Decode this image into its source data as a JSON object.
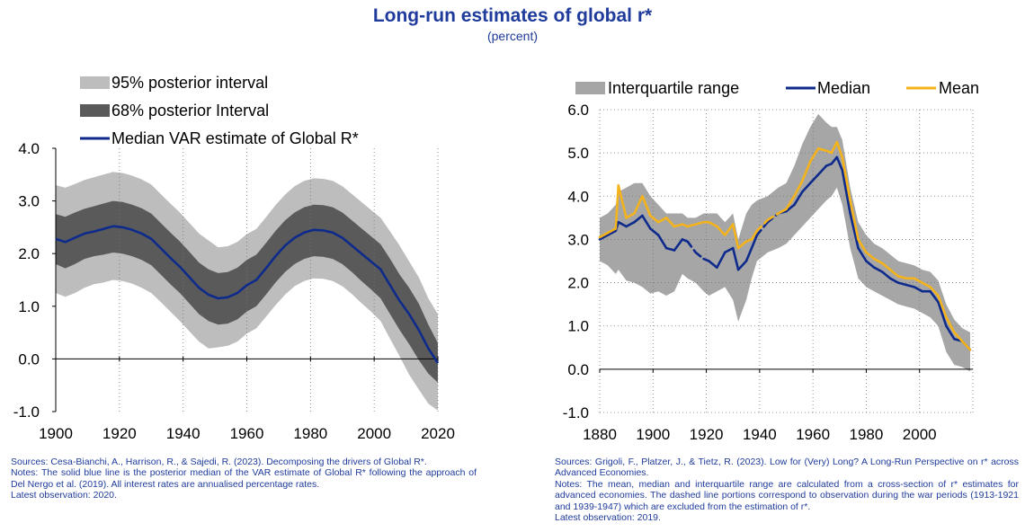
{
  "header": {
    "title": "Long-run estimates of global r*",
    "subtitle": "(percent)"
  },
  "colors": {
    "title": "#1f3b9b",
    "median_blue": "#0e2b8c",
    "band_95": "#bdbdbd",
    "band_68": "#5a5a5a",
    "iqr_gray": "#a6a6a6",
    "mean_yellow": "#f5b31b"
  },
  "chart_data": [
    {
      "type": "area",
      "title": "",
      "xlabel": "",
      "ylabel": "",
      "xlim": [
        1900,
        2020
      ],
      "ylim": [
        -1.0,
        4.0
      ],
      "x_ticks": [
        "1900",
        "1920",
        "1940",
        "1960",
        "1980",
        "2000",
        "2020"
      ],
      "y_ticks": [
        "4.0",
        "3.0",
        "2.0",
        "1.0",
        "0.0",
        "-1.0"
      ],
      "grid": "vertical dotted",
      "legend_position": "top-left",
      "legend": [
        "95% posterior interval",
        "68% posterior Interval",
        "Median VAR estimate of Global R*"
      ],
      "x": [
        1900,
        1903,
        1906,
        1909,
        1912,
        1915,
        1918,
        1921,
        1924,
        1927,
        1930,
        1933,
        1936,
        1939,
        1942,
        1945,
        1948,
        1951,
        1954,
        1957,
        1960,
        1963,
        1966,
        1969,
        1972,
        1975,
        1978,
        1981,
        1984,
        1987,
        1990,
        1993,
        1996,
        1999,
        2002,
        2005,
        2008,
        2011,
        2014,
        2017,
        2020
      ],
      "series": [
        {
          "name": "Median VAR estimate of Global R*",
          "values": [
            2.28,
            2.22,
            2.3,
            2.38,
            2.42,
            2.47,
            2.52,
            2.5,
            2.45,
            2.38,
            2.28,
            2.1,
            1.92,
            1.75,
            1.55,
            1.35,
            1.22,
            1.15,
            1.17,
            1.25,
            1.4,
            1.5,
            1.72,
            1.95,
            2.15,
            2.3,
            2.4,
            2.45,
            2.44,
            2.4,
            2.3,
            2.15,
            2.0,
            1.85,
            1.7,
            1.4,
            1.1,
            0.85,
            0.55,
            0.2,
            -0.08
          ]
        },
        {
          "name": "68% posterior Interval",
          "lower": [
            1.8,
            1.72,
            1.8,
            1.9,
            1.95,
            1.98,
            2.02,
            2.0,
            1.95,
            1.88,
            1.78,
            1.6,
            1.42,
            1.25,
            1.05,
            0.85,
            0.72,
            0.65,
            0.67,
            0.75,
            0.9,
            1.0,
            1.22,
            1.45,
            1.65,
            1.8,
            1.9,
            1.95,
            1.94,
            1.9,
            1.8,
            1.65,
            1.48,
            1.32,
            1.15,
            0.85,
            0.55,
            0.28,
            -0.02,
            -0.28,
            -0.45
          ],
          "upper": [
            2.75,
            2.7,
            2.78,
            2.85,
            2.9,
            2.95,
            3.0,
            2.98,
            2.93,
            2.86,
            2.76,
            2.58,
            2.4,
            2.23,
            2.03,
            1.83,
            1.7,
            1.63,
            1.65,
            1.73,
            1.88,
            1.98,
            2.2,
            2.43,
            2.63,
            2.78,
            2.88,
            2.93,
            2.92,
            2.88,
            2.78,
            2.63,
            2.48,
            2.33,
            2.18,
            1.9,
            1.6,
            1.35,
            1.05,
            0.65,
            0.3
          ]
        },
        {
          "name": "95% posterior interval",
          "lower": [
            1.25,
            1.18,
            1.25,
            1.35,
            1.42,
            1.45,
            1.5,
            1.48,
            1.43,
            1.35,
            1.25,
            1.08,
            0.9,
            0.72,
            0.52,
            0.33,
            0.2,
            0.22,
            0.25,
            0.33,
            0.48,
            0.58,
            0.8,
            1.02,
            1.22,
            1.38,
            1.48,
            1.53,
            1.52,
            1.48,
            1.38,
            1.23,
            1.06,
            0.9,
            0.72,
            0.38,
            0.05,
            -0.3,
            -0.58,
            -0.85,
            -0.98
          ],
          "upper": [
            3.3,
            3.25,
            3.32,
            3.4,
            3.45,
            3.5,
            3.55,
            3.53,
            3.48,
            3.41,
            3.31,
            3.13,
            2.95,
            2.78,
            2.58,
            2.38,
            2.25,
            2.12,
            2.14,
            2.22,
            2.37,
            2.47,
            2.69,
            2.92,
            3.12,
            3.28,
            3.38,
            3.43,
            3.42,
            3.38,
            3.28,
            3.13,
            2.98,
            2.83,
            2.68,
            2.42,
            2.15,
            1.85,
            1.55,
            1.15,
            0.85
          ]
        }
      ]
    },
    {
      "type": "line",
      "title": "",
      "xlabel": "",
      "ylabel": "",
      "xlim": [
        1880,
        2020
      ],
      "ylim": [
        -1.0,
        6.0
      ],
      "x_ticks": [
        "1880",
        "1900",
        "1920",
        "1940",
        "1960",
        "1980",
        "2000"
      ],
      "y_ticks": [
        "6.0",
        "5.0",
        "4.0",
        "3.0",
        "2.0",
        "1.0",
        "0.0",
        "-1.0"
      ],
      "grid": "dotted",
      "legend_position": "top",
      "legend": [
        "Interquartile range",
        "Median",
        "Mean"
      ],
      "x": [
        1880,
        1883,
        1886,
        1887,
        1890,
        1893,
        1896,
        1899,
        1902,
        1905,
        1908,
        1911,
        1913,
        1916,
        1919,
        1921,
        1924,
        1927,
        1930,
        1932,
        1935,
        1937,
        1939,
        1943,
        1947,
        1950,
        1953,
        1956,
        1959,
        1962,
        1965,
        1967,
        1969,
        1971,
        1974,
        1977,
        1980,
        1983,
        1986,
        1989,
        1992,
        1995,
        1998,
        2001,
        2004,
        2007,
        2010,
        2013,
        2016,
        2019
      ],
      "series": [
        {
          "name": "Median",
          "values": [
            3.0,
            3.1,
            3.2,
            3.4,
            3.3,
            3.4,
            3.55,
            3.25,
            3.1,
            2.8,
            2.75,
            3.0,
            2.95,
            2.7,
            2.55,
            2.5,
            2.35,
            2.7,
            2.8,
            2.3,
            2.5,
            2.8,
            3.1,
            3.4,
            3.6,
            3.65,
            3.8,
            4.1,
            4.3,
            4.5,
            4.7,
            4.75,
            4.9,
            4.6,
            3.6,
            2.8,
            2.5,
            2.35,
            2.25,
            2.1,
            2.0,
            1.95,
            1.9,
            1.8,
            1.8,
            1.55,
            1.0,
            0.7,
            0.65,
            0.45
          ]
        },
        {
          "name": "Mean",
          "values": [
            3.05,
            3.15,
            3.25,
            4.25,
            3.5,
            3.6,
            4.0,
            3.55,
            3.4,
            3.5,
            3.3,
            3.35,
            3.3,
            3.35,
            3.4,
            3.4,
            3.3,
            3.1,
            3.35,
            2.8,
            2.95,
            3.0,
            3.2,
            3.45,
            3.6,
            3.7,
            4.0,
            4.35,
            4.8,
            5.1,
            5.05,
            5.0,
            5.25,
            4.9,
            3.9,
            3.0,
            2.7,
            2.55,
            2.45,
            2.3,
            2.15,
            2.1,
            2.1,
            2.0,
            1.9,
            1.7,
            1.2,
            0.85,
            0.65,
            0.45
          ]
        },
        {
          "name": "Interquartile range",
          "lower": [
            2.5,
            2.4,
            2.2,
            2.3,
            2.05,
            2.0,
            1.9,
            1.75,
            1.8,
            1.7,
            1.8,
            2.2,
            2.1,
            2.0,
            1.8,
            1.7,
            1.8,
            1.9,
            1.6,
            1.1,
            1.6,
            2.1,
            2.5,
            2.7,
            2.8,
            2.9,
            3.1,
            3.3,
            3.5,
            3.7,
            3.9,
            4.0,
            4.2,
            3.8,
            2.8,
            2.1,
            1.9,
            1.8,
            1.7,
            1.6,
            1.5,
            1.45,
            1.4,
            1.3,
            1.2,
            1.0,
            0.4,
            0.1,
            0.05,
            -0.05
          ],
          "upper": [
            3.5,
            3.6,
            3.8,
            4.1,
            4.2,
            4.3,
            4.3,
            4.0,
            3.8,
            3.6,
            3.6,
            3.6,
            3.5,
            3.5,
            3.6,
            3.6,
            3.6,
            3.4,
            3.6,
            3.0,
            3.6,
            3.8,
            3.9,
            4.0,
            4.2,
            4.3,
            4.7,
            5.2,
            5.6,
            5.9,
            5.7,
            5.6,
            5.6,
            5.3,
            4.2,
            3.4,
            3.1,
            2.9,
            2.8,
            2.65,
            2.5,
            2.45,
            2.4,
            2.3,
            2.25,
            2.05,
            1.5,
            1.15,
            0.95,
            0.85
          ]
        }
      ],
      "dashed_segments": [
        [
          1913,
          1921
        ],
        [
          1939,
          1947
        ]
      ]
    }
  ],
  "notes": {
    "left": [
      "Sources: Cesa-Bianchi, A., Harrison, R., & Sajedi, R. (2023). Decomposing the drivers of Global R*.",
      "Notes: The solid blue line is the posterior median of the VAR estimate of Global R* following the approach of Del Nergo et al. (2019). All interest rates are annualised percentage rates.",
      "Latest observation: 2020."
    ],
    "right": [
      "Sources: Grigoli, F., Platzer, J., & Tietz, R. (2023). Low for (Very) Long? A Long-Run Perspective on r* across Advanced Economies.",
      "Notes: The mean, median and interquartile range are calculated from a cross-section of r* estimates for advanced economies. The dashed line portions correspond to observation during the war periods (1913-1921 and 1939-1947) which are excluded from the estimation of r*.",
      "Latest observation: 2019."
    ]
  }
}
